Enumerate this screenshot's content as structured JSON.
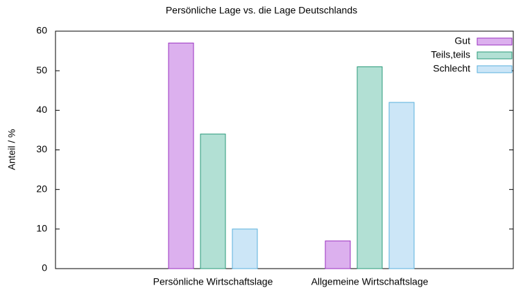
{
  "chart_data": {
    "type": "bar",
    "title": "Persönliche Lage vs. die Lage Deutschlands",
    "ylabel": "Anteil / %",
    "categories": [
      "Persönliche Wirtschaftslage",
      "Allgemeine Wirtschaftslage"
    ],
    "series": [
      {
        "name": "Gut",
        "color": "#dcb0ee",
        "edge": "#9a2fc0",
        "values": [
          57,
          7
        ]
      },
      {
        "name": "Teils,teils",
        "color": "#b2e0d4",
        "edge": "#2a9a7a",
        "values": [
          34,
          51
        ]
      },
      {
        "name": "Schlecht",
        "color": "#cce6f7",
        "edge": "#5ab0dc",
        "values": [
          10,
          42
        ]
      }
    ],
    "ylim": [
      0,
      60
    ],
    "yticks": [
      0,
      10,
      20,
      30,
      40,
      50,
      60
    ],
    "grid": false,
    "legend": "upper right"
  }
}
